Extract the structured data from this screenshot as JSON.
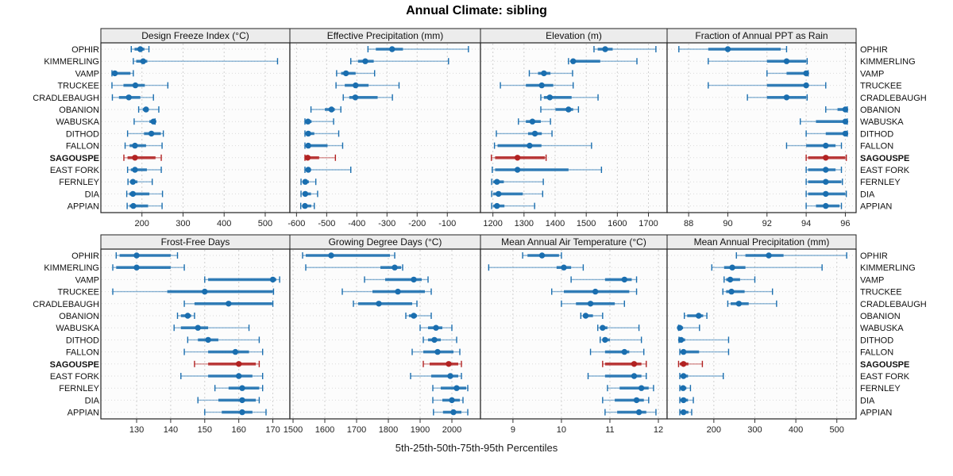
{
  "title": "Annual Climate: sibling",
  "caption": "5th-25th-50th-75th-95th Percentiles",
  "colors": {
    "series_blue": "#1a6eaf",
    "highlight_red": "#b22222",
    "strip_bg": "#ececec",
    "panel_bg": "#fcfcfc",
    "panel_border": "#222222",
    "grid": "#cfcfcf",
    "row_grid": "#d9d9d9",
    "tick_text": "#222222"
  },
  "chart_data": {
    "type": "dotplot-percentiles",
    "title": "Annual Climate: sibling",
    "xlabel": "5th-25th-50th-75th-95th Percentiles",
    "percentiles": [
      5,
      25,
      50,
      75,
      95
    ],
    "legend_position": "none",
    "grid": "dashed",
    "stations": [
      "OPHIR",
      "KIMMERLING",
      "VAMP",
      "TRUCKEE",
      "CRADLEBAUGH",
      "OBANION",
      "WABUSKA",
      "DITHOD",
      "FALLON",
      "SAGOUSPE",
      "EAST FORK",
      "FERNLEY",
      "DIA",
      "APPIAN"
    ],
    "highlighted_station": "SAGOUSPE",
    "panels": [
      {
        "title": "Design Freeze Index (°C)",
        "domain": [
          100,
          560
        ],
        "ticks": [
          200,
          300,
          400,
          500
        ],
        "values": [
          [
            174,
            182,
            196,
            206,
            217
          ],
          [
            179,
            186,
            203,
            213,
            530
          ],
          [
            127,
            129,
            134,
            172,
            179
          ],
          [
            127,
            155,
            184,
            207,
            263
          ],
          [
            128,
            144,
            168,
            196,
            228
          ],
          [
            192,
            202,
            210,
            216,
            241
          ],
          [
            181,
            218,
            228,
            231,
            232
          ],
          [
            165,
            205,
            223,
            246,
            252
          ],
          [
            159,
            170,
            183,
            210,
            249
          ],
          [
            156,
            165,
            183,
            233,
            247
          ],
          [
            165,
            173,
            183,
            212,
            247
          ],
          [
            166,
            171,
            178,
            189,
            225
          ],
          [
            163,
            169,
            178,
            218,
            250
          ],
          [
            164,
            170,
            179,
            215,
            249
          ]
        ]
      },
      {
        "title": "Effective Precipitation (mm)",
        "domain": [
          -622,
          10
        ],
        "ticks": [
          -600,
          -500,
          -400,
          -300,
          -200,
          -100
        ],
        "values": [
          [
            -363,
            -337,
            -283,
            -247,
            -30
          ],
          [
            -420,
            -396,
            -372,
            -344,
            -96
          ],
          [
            -467,
            -452,
            -436,
            -404,
            -341
          ],
          [
            -469,
            -440,
            -404,
            -361,
            -260
          ],
          [
            -445,
            -425,
            -405,
            -331,
            -282
          ],
          [
            -552,
            -506,
            -484,
            -473,
            -453
          ],
          [
            -572,
            -569,
            -562,
            -550,
            -477
          ],
          [
            -572,
            -569,
            -561,
            -541,
            -460
          ],
          [
            -572,
            -569,
            -561,
            -497,
            -447
          ],
          [
            -572,
            -569,
            -563,
            -525,
            -471
          ],
          [
            -572,
            -569,
            -561,
            -554,
            -420
          ],
          [
            -585,
            -578,
            -571,
            -559,
            -536
          ],
          [
            -585,
            -578,
            -571,
            -552,
            -530
          ],
          [
            -586,
            -578,
            -572,
            -551,
            -541
          ]
        ]
      },
      {
        "title": "Elevation (m)",
        "domain": [
          1160,
          1760
        ],
        "ticks": [
          1200,
          1300,
          1400,
          1500,
          1600,
          1700
        ],
        "values": [
          [
            1525,
            1537,
            1561,
            1585,
            1724
          ],
          [
            1443,
            1450,
            1458,
            1545,
            1663
          ],
          [
            1317,
            1345,
            1364,
            1385,
            1456
          ],
          [
            1224,
            1306,
            1357,
            1394,
            1458
          ],
          [
            1354,
            1364,
            1383,
            1453,
            1538
          ],
          [
            1354,
            1401,
            1443,
            1458,
            1475
          ],
          [
            1282,
            1306,
            1327,
            1354,
            1385
          ],
          [
            1211,
            1313,
            1335,
            1357,
            1390
          ],
          [
            1205,
            1215,
            1318,
            1356,
            1517
          ],
          [
            1195,
            1207,
            1279,
            1367,
            1371
          ],
          [
            1198,
            1207,
            1279,
            1443,
            1549
          ],
          [
            1196,
            1201,
            1213,
            1235,
            1362
          ],
          [
            1196,
            1201,
            1218,
            1296,
            1360
          ],
          [
            1196,
            1201,
            1213,
            1237,
            1334
          ]
        ]
      },
      {
        "title": "Fraction of Annual PPT as Rain",
        "domain": [
          86.9,
          96.55
        ],
        "ticks": [
          88,
          90,
          92,
          94,
          96
        ],
        "values": [
          [
            87.5,
            89,
            90,
            92.7,
            93
          ],
          [
            89,
            92,
            93,
            94,
            94.05
          ],
          [
            92,
            93,
            94,
            94.05,
            94.1
          ],
          [
            89,
            92,
            94,
            94.1,
            95
          ],
          [
            91,
            92,
            93,
            94,
            94.05
          ],
          [
            95,
            95.6,
            96,
            96.05,
            96.1
          ],
          [
            93.7,
            94.5,
            96,
            96.05,
            96.1
          ],
          [
            94,
            95,
            96,
            96.05,
            96.1
          ],
          [
            93,
            94,
            95,
            95.5,
            95.8
          ],
          [
            94,
            94.1,
            95,
            96,
            96.05
          ],
          [
            94,
            94.1,
            95,
            95.5,
            95.8
          ],
          [
            94,
            94.1,
            95,
            95.8,
            95.85
          ],
          [
            94,
            94.1,
            95,
            96,
            96.05
          ],
          [
            94,
            94.5,
            95,
            95.7,
            95.8
          ]
        ]
      },
      {
        "title": "Frost-Free Days",
        "domain": [
          119.5,
          175
        ],
        "ticks": [
          130,
          140,
          150,
          160,
          170
        ],
        "values": [
          [
            124,
            125,
            130,
            140,
            142
          ],
          [
            123,
            124,
            130,
            140,
            144
          ],
          [
            150,
            151,
            170,
            171,
            172
          ],
          [
            123,
            139,
            150,
            170,
            170.2
          ],
          [
            144,
            147,
            157,
            169.8,
            170
          ],
          [
            142,
            143,
            145,
            146,
            147
          ],
          [
            141,
            143,
            148,
            151,
            163
          ],
          [
            145,
            148,
            151,
            154,
            166
          ],
          [
            144,
            151,
            159,
            163,
            167
          ],
          [
            147,
            151,
            160,
            165,
            166
          ],
          [
            143,
            151,
            160,
            164,
            167
          ],
          [
            153,
            157,
            161,
            166,
            167
          ],
          [
            148,
            154,
            161,
            165,
            166
          ],
          [
            150,
            155,
            161,
            164,
            168
          ]
        ]
      },
      {
        "title": "Growing Degree Days (°C)",
        "domain": [
          1490,
          2090
        ],
        "ticks": [
          1500,
          1600,
          1700,
          1800,
          1900,
          2000
        ],
        "values": [
          [
            1530,
            1540,
            1620,
            1805,
            1820
          ],
          [
            1540,
            1775,
            1820,
            1840,
            1845
          ],
          [
            1725,
            1790,
            1880,
            1905,
            1925
          ],
          [
            1655,
            1750,
            1830,
            1915,
            1935
          ],
          [
            1690,
            1705,
            1770,
            1875,
            1890
          ],
          [
            1855,
            1865,
            1880,
            1890,
            1935
          ],
          [
            1900,
            1925,
            1950,
            1970,
            2000
          ],
          [
            1910,
            1925,
            1945,
            1965,
            2015
          ],
          [
            1875,
            1910,
            1955,
            2005,
            2025
          ],
          [
            1910,
            1930,
            1990,
            2020,
            2030
          ],
          [
            1870,
            1935,
            1995,
            2020,
            2030
          ],
          [
            1940,
            1965,
            2015,
            2045,
            2050
          ],
          [
            1940,
            1970,
            2000,
            2025,
            2035
          ],
          [
            1942,
            1972,
            2005,
            2030,
            2050
          ]
        ]
      },
      {
        "title": "Mean Annual Air Temperature (°C)",
        "domain": [
          8.33,
          12.18
        ],
        "ticks": [
          9,
          10,
          11,
          12
        ],
        "values": [
          [
            9.2,
            9.3,
            9.6,
            9.95,
            10.0
          ],
          [
            8.5,
            9.9,
            10.05,
            10.2,
            10.45
          ],
          [
            10.2,
            10.9,
            11.3,
            11.45,
            11.55
          ],
          [
            9.8,
            10.05,
            10.7,
            11.4,
            11.55
          ],
          [
            10.0,
            10.3,
            10.6,
            11.1,
            11.3
          ],
          [
            10.4,
            10.45,
            10.5,
            10.65,
            10.85
          ],
          [
            10.75,
            10.8,
            10.85,
            10.95,
            11.6
          ],
          [
            10.8,
            10.85,
            10.9,
            11.0,
            11.65
          ],
          [
            10.6,
            10.9,
            11.3,
            11.4,
            11.7
          ],
          [
            10.85,
            10.9,
            11.5,
            11.65,
            11.75
          ],
          [
            10.55,
            10.9,
            11.5,
            11.65,
            11.75
          ],
          [
            10.95,
            11.2,
            11.65,
            11.8,
            11.9
          ],
          [
            10.85,
            11.1,
            11.55,
            11.7,
            11.8
          ],
          [
            10.9,
            11.15,
            11.6,
            11.75,
            11.95
          ]
        ]
      },
      {
        "title": "Mean Annual Precipitation (mm)",
        "domain": [
          86,
          547
        ],
        "ticks": [
          200,
          300,
          400,
          500
        ],
        "values": [
          [
            255,
            277,
            334,
            370,
            524
          ],
          [
            195,
            225,
            245,
            277,
            464
          ],
          [
            225,
            230,
            240,
            264,
            300
          ],
          [
            222,
            230,
            243,
            275,
            343
          ],
          [
            234,
            241,
            261,
            285,
            353
          ],
          [
            128,
            135,
            163,
            174,
            183
          ],
          [
            114,
            115,
            117,
            125,
            165
          ],
          [
            115,
            116,
            120,
            130,
            236
          ],
          [
            117,
            118,
            126,
            164,
            236
          ],
          [
            114,
            117,
            126,
            138,
            172
          ],
          [
            117,
            118,
            126,
            137,
            223
          ],
          [
            117,
            118,
            125,
            133,
            143
          ],
          [
            117,
            118,
            126,
            137,
            150
          ],
          [
            117,
            118,
            126,
            138,
            146
          ]
        ]
      }
    ]
  }
}
